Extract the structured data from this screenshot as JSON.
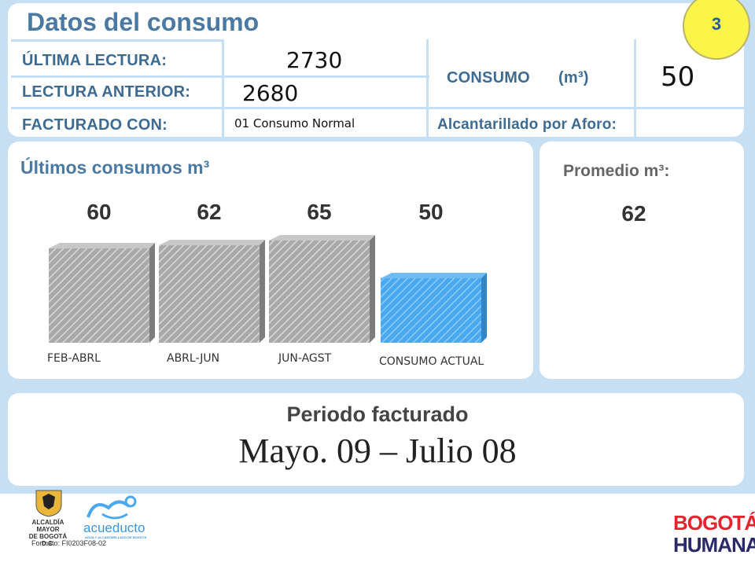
{
  "badge": {
    "number": "3"
  },
  "consumo_section": {
    "title": "Datos del consumo",
    "ultima_lectura_label": "ÚLTIMA LECTURA:",
    "ultima_lectura_value": "2730",
    "lectura_anterior_label": "LECTURA ANTERIOR:",
    "lectura_anterior_value": "2680",
    "facturado_con_label": "FACTURADO CON:",
    "facturado_con_value": "01 Consumo Normal",
    "consumo_label": "CONSUMO",
    "consumo_unit": "(m³)",
    "consumo_value": "50",
    "alcantarillado_label": "Alcantarillado por Aforo:"
  },
  "history": {
    "title": "Últimos consumos m³",
    "promedio_title": "Promedio m³:",
    "promedio_value": "62"
  },
  "chart_data": {
    "type": "bar",
    "categories": [
      "FEB-ABRL",
      "ABRL-JUN",
      "JUN-AGST",
      "CONSUMO ACTUAL"
    ],
    "values": [
      60,
      62,
      65,
      50
    ],
    "value_labels": [
      "60",
      "62",
      "65",
      "50"
    ],
    "average": 62,
    "colors": {
      "past": "#9a9a9a",
      "current": "#4aa8ee"
    }
  },
  "periodo": {
    "title": "Periodo facturado",
    "value": "Mayo. 09 – Julio 08"
  },
  "footer": {
    "alcaldia": "ALCALDÍA MAYOR\nDE BOGOTÁ D.C.",
    "acueducto": "acueducto",
    "acueducto_sub": "AGUA Y ALCANTARILLADO DE BOGOTÁ",
    "formato": "Formato: FI0203F08-02",
    "bogota_top": "BOGOTÁ",
    "bogota_bottom": "HUMANA"
  }
}
